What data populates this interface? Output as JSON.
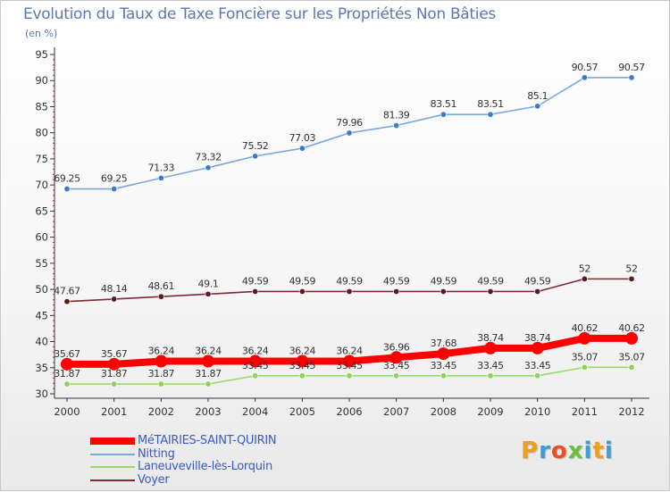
{
  "chart_data": {
    "type": "line",
    "title": "Evolution du Taux de Taxe Foncière sur les Propriétés Non Bâties",
    "subtitle": "(en %)",
    "x": [
      "2000",
      "2001",
      "2002",
      "2003",
      "2004",
      "2005",
      "2006",
      "2007",
      "2008",
      "2009",
      "2010",
      "2011",
      "2012"
    ],
    "ylim": [
      30,
      95
    ],
    "yticks": [
      30,
      35,
      40,
      45,
      50,
      55,
      60,
      65,
      70,
      75,
      80,
      85,
      90,
      95
    ],
    "grid": false,
    "legend_position": "bottom-left",
    "series": [
      {
        "name": "MéTAIRIES-SAINT-QUIRIN",
        "color": "#ff0000",
        "values": [
          35.67,
          35.67,
          36.24,
          36.24,
          36.24,
          36.24,
          36.24,
          36.96,
          37.68,
          38.74,
          38.74,
          40.62,
          40.62
        ],
        "labels": [
          "35.67",
          "35.67",
          "36.24",
          "36.24",
          "36.24",
          "36.24",
          "36.24",
          "36.96",
          "37.68",
          "38.74",
          "38.74",
          "40.62",
          "40.62"
        ]
      },
      {
        "name": "Nitting",
        "color": "#7aa7dd",
        "point_color": "#3d7cc9",
        "values": [
          69.25,
          69.25,
          71.33,
          73.32,
          75.52,
          77.03,
          79.96,
          81.39,
          83.51,
          83.51,
          85.1,
          90.57,
          90.57
        ],
        "labels": [
          "69.25",
          "69.25",
          "71.33",
          "73.32",
          "75.52",
          "77.03",
          "79.96",
          "81.39",
          "83.51",
          "83.51",
          "85.1",
          "90.57",
          "90.57"
        ]
      },
      {
        "name": "Laneuveville-lès-Lorquin",
        "color": "#9ed86b",
        "point_color": "#8fd15a",
        "values": [
          31.87,
          31.87,
          31.87,
          31.87,
          33.45,
          33.45,
          33.45,
          33.45,
          33.45,
          33.45,
          33.45,
          35.07,
          35.07
        ],
        "labels": [
          "31.87",
          "31.87",
          "31.87",
          "31.87",
          "33.45",
          "33.45",
          "33.45",
          "33.45",
          "33.45",
          "33.45",
          "33.45",
          "35.07",
          "35.07"
        ]
      },
      {
        "name": "Voyer",
        "color": "#7d2b32",
        "point_color": "#5a1a20",
        "values": [
          47.67,
          48.14,
          48.61,
          49.1,
          49.59,
          49.59,
          49.59,
          49.59,
          49.59,
          49.59,
          49.59,
          52,
          52
        ],
        "labels": [
          "47.67",
          "48.14",
          "48.61",
          "49.1",
          "49.59",
          "49.59",
          "49.59",
          "49.59",
          "49.59",
          "49.59",
          "49.59",
          "52",
          "52"
        ]
      }
    ]
  },
  "logo": {
    "text": "Proxiti",
    "colors": [
      "#f0a020",
      "#3aa0d8",
      "#e8502a",
      "#6cbf3a",
      "#3aa0d8",
      "#f0a020",
      "#3aa0d8"
    ]
  }
}
